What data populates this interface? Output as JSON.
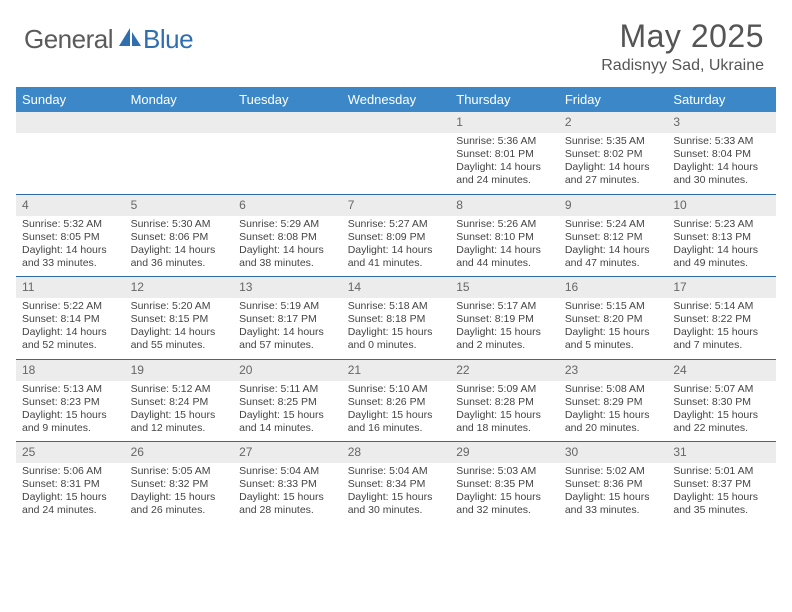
{
  "logo": {
    "general": "General",
    "blue": "Blue"
  },
  "title": "May 2025",
  "location": "Radisnyy Sad, Ukraine",
  "colors": {
    "header_bg": "#3b87c8",
    "header_text": "#ffffff",
    "row_border": "#2e6aa6",
    "daynum_bg": "#ececec",
    "body_text": "#444444",
    "logo_gray": "#5b5b5b",
    "logo_blue": "#2f6fb0"
  },
  "weekdays": [
    "Sunday",
    "Monday",
    "Tuesday",
    "Wednesday",
    "Thursday",
    "Friday",
    "Saturday"
  ],
  "weeks": [
    [
      null,
      null,
      null,
      null,
      {
        "n": "1",
        "sr": "5:36 AM",
        "ss": "8:01 PM",
        "dh": "14",
        "dm": "24"
      },
      {
        "n": "2",
        "sr": "5:35 AM",
        "ss": "8:02 PM",
        "dh": "14",
        "dm": "27"
      },
      {
        "n": "3",
        "sr": "5:33 AM",
        "ss": "8:04 PM",
        "dh": "14",
        "dm": "30"
      }
    ],
    [
      {
        "n": "4",
        "sr": "5:32 AM",
        "ss": "8:05 PM",
        "dh": "14",
        "dm": "33"
      },
      {
        "n": "5",
        "sr": "5:30 AM",
        "ss": "8:06 PM",
        "dh": "14",
        "dm": "36"
      },
      {
        "n": "6",
        "sr": "5:29 AM",
        "ss": "8:08 PM",
        "dh": "14",
        "dm": "38"
      },
      {
        "n": "7",
        "sr": "5:27 AM",
        "ss": "8:09 PM",
        "dh": "14",
        "dm": "41"
      },
      {
        "n": "8",
        "sr": "5:26 AM",
        "ss": "8:10 PM",
        "dh": "14",
        "dm": "44"
      },
      {
        "n": "9",
        "sr": "5:24 AM",
        "ss": "8:12 PM",
        "dh": "14",
        "dm": "47"
      },
      {
        "n": "10",
        "sr": "5:23 AM",
        "ss": "8:13 PM",
        "dh": "14",
        "dm": "49"
      }
    ],
    [
      {
        "n": "11",
        "sr": "5:22 AM",
        "ss": "8:14 PM",
        "dh": "14",
        "dm": "52"
      },
      {
        "n": "12",
        "sr": "5:20 AM",
        "ss": "8:15 PM",
        "dh": "14",
        "dm": "55"
      },
      {
        "n": "13",
        "sr": "5:19 AM",
        "ss": "8:17 PM",
        "dh": "14",
        "dm": "57"
      },
      {
        "n": "14",
        "sr": "5:18 AM",
        "ss": "8:18 PM",
        "dh": "15",
        "dm": "0"
      },
      {
        "n": "15",
        "sr": "5:17 AM",
        "ss": "8:19 PM",
        "dh": "15",
        "dm": "2"
      },
      {
        "n": "16",
        "sr": "5:15 AM",
        "ss": "8:20 PM",
        "dh": "15",
        "dm": "5"
      },
      {
        "n": "17",
        "sr": "5:14 AM",
        "ss": "8:22 PM",
        "dh": "15",
        "dm": "7"
      }
    ],
    [
      {
        "n": "18",
        "sr": "5:13 AM",
        "ss": "8:23 PM",
        "dh": "15",
        "dm": "9"
      },
      {
        "n": "19",
        "sr": "5:12 AM",
        "ss": "8:24 PM",
        "dh": "15",
        "dm": "12"
      },
      {
        "n": "20",
        "sr": "5:11 AM",
        "ss": "8:25 PM",
        "dh": "15",
        "dm": "14"
      },
      {
        "n": "21",
        "sr": "5:10 AM",
        "ss": "8:26 PM",
        "dh": "15",
        "dm": "16"
      },
      {
        "n": "22",
        "sr": "5:09 AM",
        "ss": "8:28 PM",
        "dh": "15",
        "dm": "18"
      },
      {
        "n": "23",
        "sr": "5:08 AM",
        "ss": "8:29 PM",
        "dh": "15",
        "dm": "20"
      },
      {
        "n": "24",
        "sr": "5:07 AM",
        "ss": "8:30 PM",
        "dh": "15",
        "dm": "22"
      }
    ],
    [
      {
        "n": "25",
        "sr": "5:06 AM",
        "ss": "8:31 PM",
        "dh": "15",
        "dm": "24"
      },
      {
        "n": "26",
        "sr": "5:05 AM",
        "ss": "8:32 PM",
        "dh": "15",
        "dm": "26"
      },
      {
        "n": "27",
        "sr": "5:04 AM",
        "ss": "8:33 PM",
        "dh": "15",
        "dm": "28"
      },
      {
        "n": "28",
        "sr": "5:04 AM",
        "ss": "8:34 PM",
        "dh": "15",
        "dm": "30"
      },
      {
        "n": "29",
        "sr": "5:03 AM",
        "ss": "8:35 PM",
        "dh": "15",
        "dm": "32"
      },
      {
        "n": "30",
        "sr": "5:02 AM",
        "ss": "8:36 PM",
        "dh": "15",
        "dm": "33"
      },
      {
        "n": "31",
        "sr": "5:01 AM",
        "ss": "8:37 PM",
        "dh": "15",
        "dm": "35"
      }
    ]
  ],
  "labels": {
    "sunrise": "Sunrise: ",
    "sunset": "Sunset: ",
    "daylight_prefix": "Daylight: ",
    "hours_and": " hours and ",
    "minutes": " minutes."
  }
}
